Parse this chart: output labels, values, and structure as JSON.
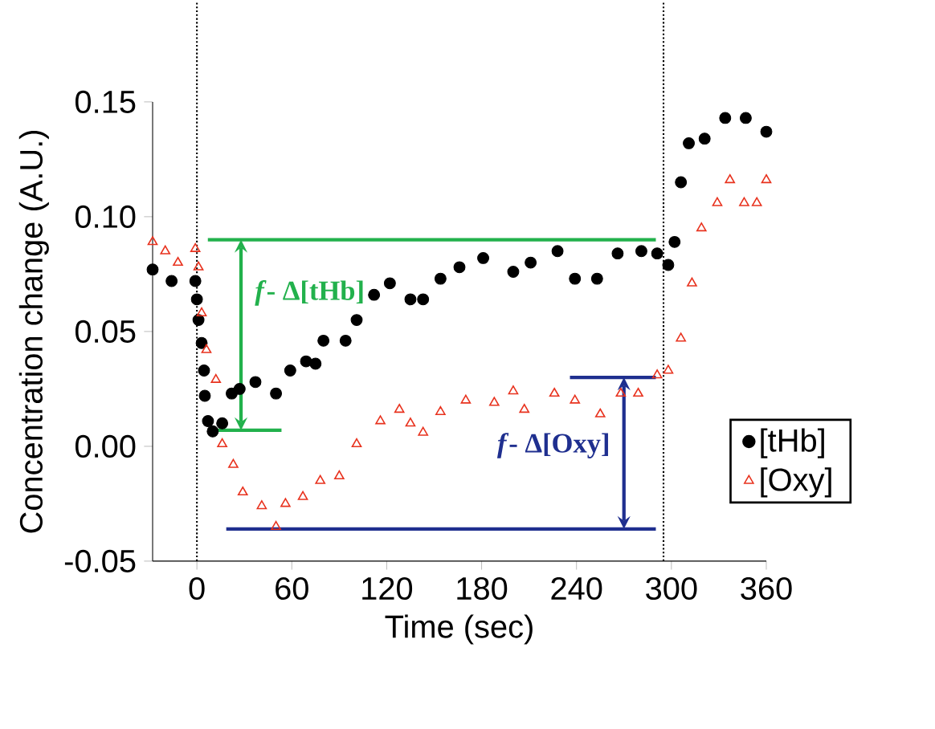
{
  "chart_data": {
    "type": "scatter",
    "xlabel": "Time (sec)",
    "ylabel": "Concentration change (A.U.)",
    "x": [
      -28,
      -16,
      -1,
      0,
      1,
      3,
      4.5,
      5,
      7,
      10,
      16,
      22,
      27,
      37,
      50,
      59,
      69,
      75,
      80,
      94,
      101,
      112,
      122,
      135,
      143,
      154,
      166,
      181,
      200,
      211,
      228,
      239,
      253,
      266,
      281,
      291,
      298,
      302,
      306,
      311,
      321,
      334,
      347,
      360
    ],
    "series": [
      {
        "name": "[tHb]",
        "color": "#000000",
        "marker": "circle",
        "values": [
          0.077,
          0.072,
          0.072,
          0.064,
          0.055,
          0.045,
          0.033,
          0.022,
          0.011,
          0.0065,
          0.01,
          0.023,
          0.025,
          0.028,
          0.023,
          0.033,
          0.037,
          0.036,
          0.046,
          0.046,
          0.055,
          0.066,
          0.071,
          0.064,
          0.064,
          0.073,
          0.078,
          0.082,
          0.076,
          0.08,
          0.085,
          0.073,
          0.073,
          0.084,
          0.085,
          0.084,
          0.079,
          0.089,
          0.115,
          0.132,
          0.134,
          0.143,
          0.143,
          0.137
        ]
      },
      {
        "name": "[Oxy]",
        "color": "#e8321e",
        "marker": "triangle",
        "x": [
          -28,
          -20,
          -12,
          -1,
          1,
          3,
          6,
          12,
          16,
          23,
          29,
          41,
          50,
          56,
          67,
          78,
          90,
          101,
          116,
          128,
          135,
          143,
          154,
          170,
          188,
          200,
          207,
          226,
          239,
          255,
          268,
          279,
          291,
          298,
          306,
          313,
          319,
          329,
          337,
          346,
          354,
          360
        ],
        "values": [
          0.089,
          0.085,
          0.08,
          0.086,
          0.078,
          0.058,
          0.042,
          0.029,
          0.001,
          -0.008,
          -0.02,
          -0.026,
          -0.035,
          -0.025,
          -0.022,
          -0.015,
          -0.013,
          0.001,
          0.011,
          0.016,
          0.01,
          0.006,
          0.015,
          0.02,
          0.019,
          0.024,
          0.016,
          0.023,
          0.02,
          0.014,
          0.023,
          0.023,
          0.031,
          0.033,
          0.047,
          0.071,
          0.095,
          0.106,
          0.116,
          0.106,
          0.106,
          0.116
        ]
      }
    ],
    "xlim": [
      -28,
      360
    ],
    "ylim": [
      -0.05,
      0.15
    ],
    "xticks": [
      0,
      60,
      120,
      180,
      240,
      300,
      360
    ],
    "yticks": [
      {
        "value": -0.05,
        "label": "-0.05"
      },
      {
        "value": 0,
        "label": "0.00"
      },
      {
        "value": 0.05,
        "label": "0.05"
      },
      {
        "value": 0.1,
        "label": "0.10"
      },
      {
        "value": 0.15,
        "label": "0.15"
      }
    ],
    "ref_lines": [
      {
        "axis": "x",
        "value": 0,
        "color": "#000000",
        "line_style": "dotted"
      },
      {
        "axis": "x",
        "value": 295,
        "color": "#000000",
        "line_style": "dotted"
      },
      {
        "axis": "y",
        "value": 0.09,
        "color": "#22b14c"
      },
      {
        "axis": "y",
        "value": 0.007,
        "color": "#22b14c"
      },
      {
        "axis": "y",
        "value": 0.03,
        "color": "#1f2f8f"
      },
      {
        "axis": "y",
        "value": -0.036,
        "color": "#1f2f8f"
      }
    ],
    "annotations": [
      "*f*- Δ[tHb]",
      "*f*- Δ[Oxy]"
    ],
    "legend": "right",
    "grid": false
  }
}
